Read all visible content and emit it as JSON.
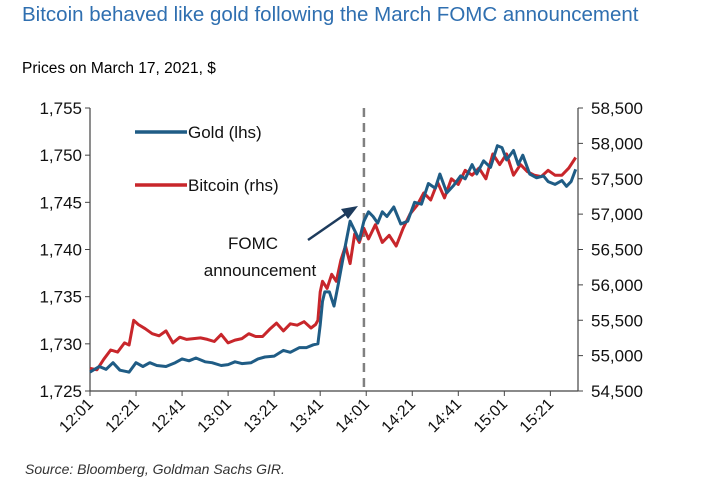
{
  "title": "Bitcoin behaved like gold following the March FOMC announcement",
  "subtitle": "Prices on March 17, 2021, $",
  "source": "Source: Bloomberg, Goldman Sachs GIR.",
  "colors": {
    "gold": "#1f5c85",
    "bitcoin": "#c8262b",
    "title": "#2f6fb0",
    "vline": "#808080"
  },
  "chart_data": {
    "type": "line",
    "title": "Bitcoin behaved like gold following the March FOMC announcement",
    "subtitle": "Prices on March 17, 2021, $",
    "x_ticks": [
      "12:01",
      "12:21",
      "12:41",
      "13:01",
      "13:21",
      "13:41",
      "14:01",
      "14:21",
      "14:41",
      "15:01",
      "15:21"
    ],
    "x_range_minutes": [
      721,
      933
    ],
    "y_left": {
      "label": "",
      "ticks": [
        "1,725",
        "1,730",
        "1,735",
        "1,740",
        "1,745",
        "1,750",
        "1,755"
      ],
      "range": [
        1725,
        1755
      ]
    },
    "y_right": {
      "label": "",
      "ticks": [
        "54,500",
        "55,000",
        "55,500",
        "56,000",
        "56,500",
        "57,000",
        "57,500",
        "58,000",
        "58,500"
      ],
      "range": [
        54500,
        58500
      ]
    },
    "legend": [
      "Gold (lhs)",
      "Bitcoin (rhs)"
    ],
    "legend_position": "top-left",
    "annotation": {
      "line1": "FOMC",
      "line2": "announcement",
      "at": "14:00"
    },
    "series": [
      {
        "name": "Gold (lhs)",
        "axis": "left",
        "points": [
          [
            721,
            1727.0
          ],
          [
            725,
            1727.6
          ],
          [
            728,
            1727.3
          ],
          [
            731,
            1728.0
          ],
          [
            734,
            1727.2
          ],
          [
            738,
            1727.0
          ],
          [
            741,
            1728.0
          ],
          [
            744,
            1727.6
          ],
          [
            747,
            1728.0
          ],
          [
            750,
            1727.7
          ],
          [
            754,
            1727.6
          ],
          [
            758,
            1728.0
          ],
          [
            761,
            1728.4
          ],
          [
            764,
            1728.2
          ],
          [
            767,
            1728.5
          ],
          [
            771,
            1728.1
          ],
          [
            774,
            1728.0
          ],
          [
            778,
            1727.7
          ],
          [
            781,
            1727.8
          ],
          [
            784,
            1728.1
          ],
          [
            787,
            1727.9
          ],
          [
            791,
            1728.0
          ],
          [
            794,
            1728.4
          ],
          [
            797,
            1728.6
          ],
          [
            801,
            1728.7
          ],
          [
            805,
            1729.3
          ],
          [
            808,
            1729.1
          ],
          [
            812,
            1729.6
          ],
          [
            815,
            1729.6
          ],
          [
            818,
            1729.9
          ],
          [
            820,
            1730.0
          ],
          [
            821,
            1732.0
          ],
          [
            822,
            1734.5
          ],
          [
            823,
            1735.5
          ],
          [
            825,
            1735.5
          ],
          [
            827,
            1734.0
          ],
          [
            829,
            1736.5
          ],
          [
            832,
            1740.5
          ],
          [
            834,
            1743.0
          ],
          [
            836,
            1742.0
          ],
          [
            838,
            1741.0
          ],
          [
            840,
            1743.0
          ],
          [
            842,
            1744.0
          ],
          [
            844,
            1743.5
          ],
          [
            846,
            1742.8
          ],
          [
            848,
            1744.0
          ],
          [
            850,
            1743.5
          ],
          [
            853,
            1744.5
          ],
          [
            856,
            1742.7
          ],
          [
            859,
            1743.0
          ],
          [
            862,
            1745.0
          ],
          [
            865,
            1744.8
          ],
          [
            868,
            1747.0
          ],
          [
            871,
            1746.5
          ],
          [
            873,
            1748.0
          ],
          [
            876,
            1746.0
          ],
          [
            879,
            1746.8
          ],
          [
            882,
            1747.8
          ],
          [
            884,
            1747.5
          ],
          [
            887,
            1749.0
          ],
          [
            889,
            1748.0
          ],
          [
            892,
            1749.4
          ],
          [
            895,
            1748.7
          ],
          [
            898,
            1751.0
          ],
          [
            900,
            1750.8
          ],
          [
            902,
            1749.5
          ],
          [
            905,
            1750.5
          ],
          [
            907,
            1749.0
          ],
          [
            909,
            1750.0
          ],
          [
            912,
            1748.0
          ],
          [
            915,
            1747.6
          ],
          [
            918,
            1747.8
          ],
          [
            920,
            1747.2
          ],
          [
            923,
            1746.9
          ],
          [
            926,
            1747.3
          ],
          [
            928,
            1746.7
          ],
          [
            930,
            1747.2
          ],
          [
            932,
            1748.5
          ]
        ]
      },
      {
        "name": "Bitcoin (rhs)",
        "axis": "right",
        "points": [
          [
            721,
            54820
          ],
          [
            724,
            54800
          ],
          [
            727,
            54950
          ],
          [
            730,
            55080
          ],
          [
            733,
            55050
          ],
          [
            736,
            55180
          ],
          [
            738,
            55150
          ],
          [
            740,
            55500
          ],
          [
            742,
            55440
          ],
          [
            745,
            55380
          ],
          [
            748,
            55310
          ],
          [
            751,
            55280
          ],
          [
            754,
            55350
          ],
          [
            757,
            55180
          ],
          [
            760,
            55260
          ],
          [
            763,
            55230
          ],
          [
            766,
            55240
          ],
          [
            769,
            55250
          ],
          [
            772,
            55230
          ],
          [
            775,
            55200
          ],
          [
            778,
            55300
          ],
          [
            781,
            55180
          ],
          [
            784,
            55220
          ],
          [
            787,
            55240
          ],
          [
            790,
            55310
          ],
          [
            793,
            55270
          ],
          [
            796,
            55270
          ],
          [
            799,
            55370
          ],
          [
            802,
            55460
          ],
          [
            805,
            55350
          ],
          [
            808,
            55450
          ],
          [
            811,
            55430
          ],
          [
            814,
            55480
          ],
          [
            817,
            55390
          ],
          [
            819,
            55440
          ],
          [
            820,
            55500
          ],
          [
            821,
            55900
          ],
          [
            822,
            56050
          ],
          [
            824,
            55950
          ],
          [
            826,
            56150
          ],
          [
            828,
            56050
          ],
          [
            830,
            56350
          ],
          [
            832,
            56550
          ],
          [
            834,
            56300
          ],
          [
            836,
            56720
          ],
          [
            838,
            56600
          ],
          [
            840,
            56800
          ],
          [
            842,
            56650
          ],
          [
            845,
            56850
          ],
          [
            848,
            56600
          ],
          [
            851,
            56700
          ],
          [
            854,
            56550
          ],
          [
            857,
            56800
          ],
          [
            860,
            57000
          ],
          [
            863,
            57120
          ],
          [
            866,
            57300
          ],
          [
            869,
            57200
          ],
          [
            872,
            57450
          ],
          [
            875,
            57230
          ],
          [
            878,
            57500
          ],
          [
            881,
            57420
          ],
          [
            884,
            57620
          ],
          [
            887,
            57550
          ],
          [
            890,
            57650
          ],
          [
            893,
            57500
          ],
          [
            896,
            57850
          ],
          [
            899,
            57700
          ],
          [
            902,
            57850
          ],
          [
            905,
            57550
          ],
          [
            908,
            57700
          ],
          [
            911,
            57600
          ],
          [
            914,
            57550
          ],
          [
            917,
            57530
          ],
          [
            920,
            57620
          ],
          [
            923,
            57550
          ],
          [
            926,
            57550
          ],
          [
            929,
            57650
          ],
          [
            932,
            57800
          ]
        ]
      }
    ]
  }
}
